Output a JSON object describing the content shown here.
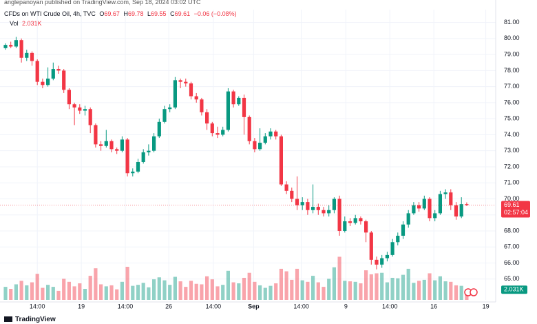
{
  "header": {
    "author": "anglepanoyan published on TradingView.com, Sep 18, 2024 03:02 UTC",
    "footer": "TradingView"
  },
  "chart_data": {
    "type": "candlestick",
    "symbol": "CFDs on WTI Crude Oil, 4h, TVC",
    "ohlc_keys": [
      "O",
      "H",
      "L",
      "C"
    ],
    "change": "−0.06 (−0.08%)",
    "countdown": "02:57:04",
    "up_color": "#089981",
    "down_color": "#f23645",
    "open": [
      79.4,
      79.6,
      79.5,
      79.9,
      78.8,
      79.1,
      78.6,
      77.3,
      77.1,
      77.5,
      78.1,
      78.0,
      76.8,
      75.9,
      75.7,
      75.5,
      75.6,
      74.6,
      73.4,
      73.3,
      73.6,
      73.1,
      73.0,
      73.7,
      71.6,
      71.7,
      72.3,
      72.9,
      73.0,
      73.9,
      74.8,
      75.6,
      75.7,
      77.4,
      77.3,
      77.2,
      76.4,
      76.2,
      75.4,
      74.7,
      74.1,
      74.0,
      74.3,
      76.7,
      75.9,
      76.3,
      75.1,
      73.6,
      73.1,
      73.5,
      73.9,
      74.2,
      73.9,
      70.9,
      70.5,
      70.0,
      69.6,
      69.8,
      69.3,
      69.5,
      69.3,
      69.1,
      69.3,
      70.0,
      68.0,
      68.6,
      68.5,
      68.8,
      68.6,
      67.9,
      66.2,
      65.9,
      66.3,
      66.5,
      67.3,
      67.7,
      68.4,
      69.1,
      69.6,
      69.4,
      70.0,
      68.8,
      69.1,
      70.3,
      70.4,
      69.6,
      68.9,
      69.67
    ],
    "high": [
      79.7,
      79.8,
      80.1,
      80.0,
      79.3,
      79.2,
      78.7,
      77.5,
      78.2,
      78.5,
      78.3,
      78.1,
      76.9,
      76.0,
      75.9,
      75.8,
      75.7,
      74.7,
      73.6,
      74.3,
      73.7,
      73.2,
      73.9,
      73.8,
      71.9,
      72.5,
      73.1,
      73.4,
      74.1,
      75.0,
      75.8,
      75.9,
      77.6,
      77.5,
      77.5,
      77.3,
      76.6,
      76.3,
      75.6,
      74.8,
      74.5,
      74.5,
      76.9,
      76.8,
      76.4,
      76.5,
      75.2,
      73.8,
      74.4,
      74.1,
      74.4,
      74.3,
      74.0,
      71.1,
      70.7,
      71.4,
      70.1,
      70.0,
      70.9,
      69.7,
      69.5,
      69.6,
      70.1,
      70.2,
      68.9,
      68.8,
      69.0,
      68.9,
      68.7,
      68.0,
      66.4,
      66.5,
      66.7,
      67.5,
      67.9,
      68.6,
      69.3,
      69.8,
      69.8,
      70.2,
      70.1,
      69.3,
      70.5,
      70.6,
      70.6,
      69.8,
      70.1,
      69.78
    ],
    "low": [
      79.3,
      79.4,
      79.4,
      78.5,
      78.6,
      78.3,
      77.1,
      76.9,
      77.0,
      77.4,
      77.8,
      76.6,
      75.6,
      74.6,
      75.3,
      75.2,
      74.1,
      73.2,
      73.0,
      73.2,
      72.9,
      72.8,
      72.9,
      71.4,
      71.4,
      71.6,
      72.2,
      72.7,
      72.9,
      73.8,
      74.7,
      75.4,
      75.6,
      76.9,
      77.0,
      76.2,
      76.0,
      75.2,
      74.3,
      73.9,
      73.8,
      73.9,
      74.2,
      75.7,
      75.8,
      74.0,
      73.4,
      72.9,
      73.0,
      73.4,
      73.7,
      73.7,
      70.8,
      70.3,
      69.8,
      69.3,
      69.3,
      69.0,
      69.1,
      69.0,
      68.9,
      68.9,
      69.1,
      67.7,
      67.9,
      68.3,
      68.4,
      68.4,
      67.3,
      65.9,
      65.6,
      65.7,
      66.1,
      66.4,
      67.1,
      67.5,
      68.2,
      69.0,
      69.2,
      69.3,
      68.6,
      68.6,
      69.0,
      70.0,
      69.3,
      68.7,
      68.8,
      69.55
    ],
    "close": [
      79.6,
      79.5,
      79.9,
      78.8,
      79.1,
      78.6,
      77.3,
      77.1,
      77.5,
      78.1,
      78.0,
      76.8,
      75.9,
      75.7,
      75.5,
      75.6,
      74.6,
      73.4,
      73.3,
      73.6,
      73.1,
      73.0,
      73.7,
      71.6,
      71.7,
      72.3,
      72.9,
      73.0,
      73.9,
      74.8,
      75.6,
      75.7,
      77.4,
      77.3,
      77.2,
      76.4,
      76.2,
      75.4,
      74.7,
      74.1,
      74.0,
      74.3,
      76.7,
      75.9,
      76.3,
      75.1,
      73.6,
      73.1,
      73.5,
      73.9,
      74.2,
      73.9,
      70.9,
      70.5,
      70.0,
      69.6,
      69.8,
      69.3,
      69.5,
      69.3,
      69.1,
      69.3,
      70.0,
      68.0,
      68.6,
      68.5,
      68.8,
      68.6,
      67.9,
      66.2,
      65.9,
      66.3,
      66.5,
      67.3,
      67.7,
      68.4,
      69.1,
      69.6,
      69.4,
      70.0,
      68.8,
      69.1,
      70.3,
      70.4,
      69.6,
      68.9,
      69.67,
      69.61
    ],
    "volume": {
      "name": "Vol",
      "last_label": "2.031K",
      "lim": [
        0,
        11000
      ],
      "values": [
        2600,
        2200,
        3100,
        3800,
        2900,
        3500,
        5200,
        2400,
        3000,
        2600,
        1800,
        4200,
        3600,
        2700,
        3300,
        2200,
        4800,
        6300,
        3100,
        2700,
        2900,
        2100,
        3600,
        6600,
        2800,
        3000,
        3400,
        2500,
        4100,
        4500,
        3900,
        3000,
        4600,
        3700,
        2600,
        3800,
        3200,
        3100,
        4700,
        4100,
        2700,
        3000,
        5800,
        3500,
        3300,
        4400,
        5400,
        3600,
        2900,
        2400,
        2800,
        3300,
        6200,
        5700,
        4000,
        6200,
        3900,
        3600,
        4800,
        3500,
        2600,
        4200,
        6500,
        8600,
        3800,
        3700,
        3600,
        3300,
        5900,
        5100,
        5300,
        5400,
        3500,
        4400,
        4300,
        5000,
        6200,
        3400,
        3800,
        4000,
        5300,
        3900,
        4700,
        3700,
        3600,
        2900,
        2800,
        2031
      ]
    },
    "ylim": [
      63.7,
      81.8
    ],
    "yticks": [
      {
        "value": 65,
        "label": "65.00"
      },
      {
        "value": 66,
        "label": "66.00"
      },
      {
        "value": 67,
        "label": "67.00"
      },
      {
        "value": 68,
        "label": "68.00"
      },
      {
        "value": 69,
        "label": "69.00"
      },
      {
        "value": 70,
        "label": "70.00"
      },
      {
        "value": 71,
        "label": "71.00"
      },
      {
        "value": 72,
        "label": "72.00"
      },
      {
        "value": 73,
        "label": "73.00"
      },
      {
        "value": 74,
        "label": "74.00"
      },
      {
        "value": 75,
        "label": "75.00"
      },
      {
        "value": 76,
        "label": "76.00"
      },
      {
        "value": 77,
        "label": "77.00"
      },
      {
        "value": 78,
        "label": "78.00"
      },
      {
        "value": 79,
        "label": "79.00"
      },
      {
        "value": 80,
        "label": "80.00"
      },
      {
        "value": 81,
        "label": "81.00"
      }
    ],
    "xticks": [
      {
        "value": 6,
        "label": "14:00"
      },
      {
        "value": 14.3,
        "label": "19"
      },
      {
        "value": 22.6,
        "label": "14:00"
      },
      {
        "value": 30.8,
        "label": "26"
      },
      {
        "value": 39.2,
        "label": "14:00"
      },
      {
        "value": 46.8,
        "label": "Sep"
      },
      {
        "value": 55.8,
        "label": "14:00"
      },
      {
        "value": 64.2,
        "label": "9"
      },
      {
        "value": 72.5,
        "label": "14:00"
      },
      {
        "value": 80.8,
        "label": "16"
      },
      {
        "value": 90.6,
        "label": "19"
      }
    ],
    "grid": true
  }
}
